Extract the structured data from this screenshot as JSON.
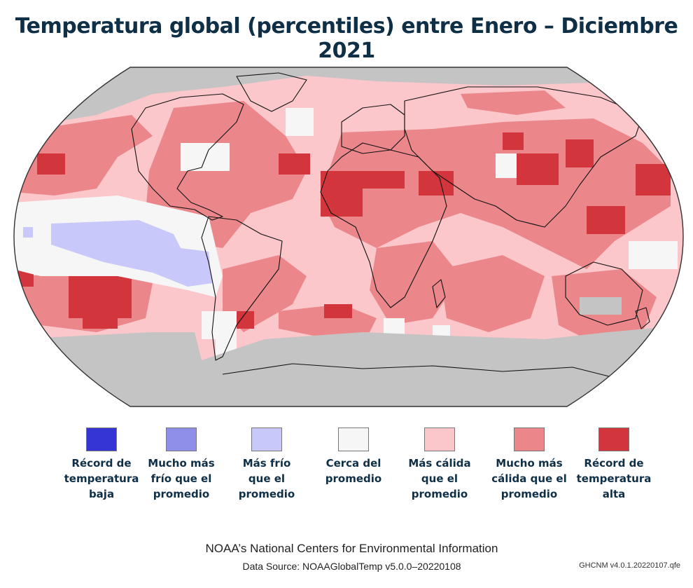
{
  "title": "Temperatura global (percentiles) entre Enero – Diciembre 2021",
  "legend": [
    {
      "label": "Récord de\ntemperatura\nbaja",
      "color": "#3535d6"
    },
    {
      "label": "Mucho más\nfrío que el\npromedio",
      "color": "#8f8fea"
    },
    {
      "label": "Más frío\nque el\npromedio",
      "color": "#c8c8fa"
    },
    {
      "label": "Cerca del\npromedio",
      "color": "#f6f6f6"
    },
    {
      "label": "Más cálida\nque el\npromedio",
      "color": "#fbc7cb"
    },
    {
      "label": "Mucho más\ncálida que el\npromedio",
      "color": "#eb878b"
    },
    {
      "label": "Récord de\ntemperatura\nalta",
      "color": "#d2353b"
    }
  ],
  "no_data_color": "#c4c4c4",
  "credit": {
    "main": "NOAA’s National Centers for Environmental Information",
    "source": "Data Source: NOAAGlobalTemp v5.0.0–20220108",
    "version": "GHCNM v4.0.1.20220107.qfe"
  }
}
